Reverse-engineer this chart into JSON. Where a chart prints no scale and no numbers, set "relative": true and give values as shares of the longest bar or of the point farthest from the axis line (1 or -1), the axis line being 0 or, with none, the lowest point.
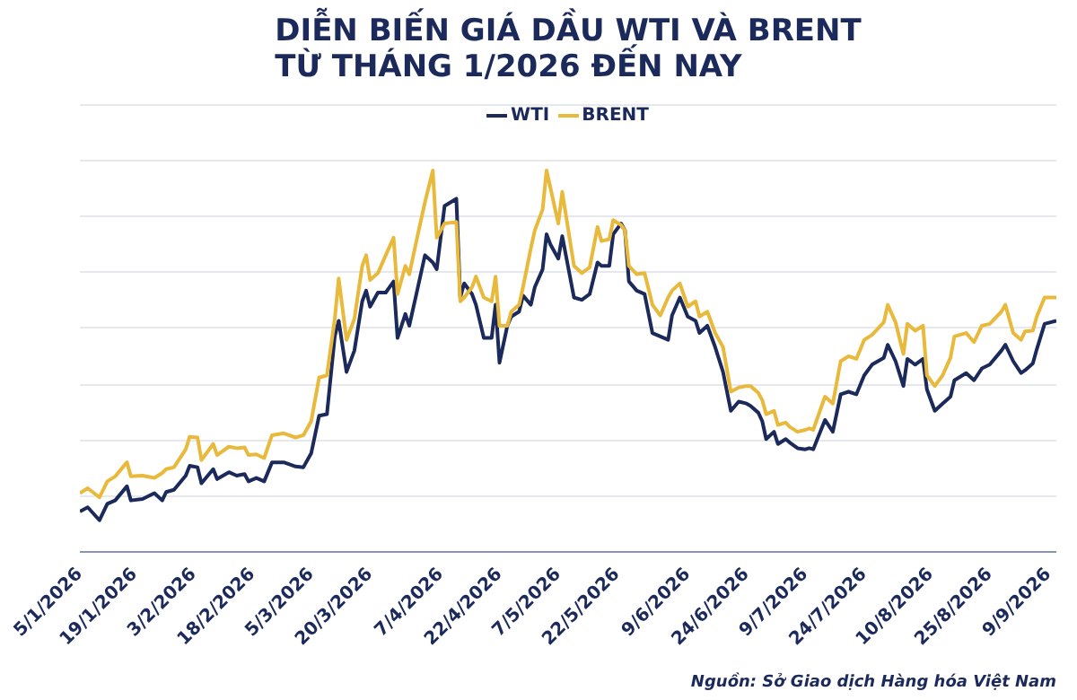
{
  "chart_data": {
    "type": "line",
    "title": "DIỄN BIẾN GIÁ DẦU WTI VÀ BRENT\nTỪ THÁNG 1/2026 ĐẾN NAY",
    "relative": true,
    "grid": "y",
    "legend": "top",
    "line_style": "solid",
    "annotations": [
      "Nguồn: Sở Giao dịch Hàng hóa Việt Nam"
    ],
    "xlim": [
      "2026-01-05",
      "2026-09-11"
    ],
    "xticks": [
      {
        "value": "2026-01-05",
        "label": "5/1/2026"
      },
      {
        "value": "2026-01-19",
        "label": "19/1/2026"
      },
      {
        "value": "2026-02-03",
        "label": "3/2/2026"
      },
      {
        "value": "2026-02-18",
        "label": "18/2/2026"
      },
      {
        "value": "2026-03-05",
        "label": "5/3/2026"
      },
      {
        "value": "2026-03-20",
        "label": "20/3/2026"
      },
      {
        "value": "2026-04-07",
        "label": "7/4/2026"
      },
      {
        "value": "2026-04-22",
        "label": "22/4/2026"
      },
      {
        "value": "2026-05-07",
        "label": "7/5/2026"
      },
      {
        "value": "2026-05-22",
        "label": "22/5/2026"
      },
      {
        "value": "2026-06-09",
        "label": "9/6/2026"
      },
      {
        "value": "2026-06-24",
        "label": "24/6/2026"
      },
      {
        "value": "2026-07-09",
        "label": "9/7/2026"
      },
      {
        "value": "2026-07-24",
        "label": "24/7/2026"
      },
      {
        "value": "2026-08-10",
        "label": "10/8/2026"
      },
      {
        "value": "2026-08-25",
        "label": "25/8/2026"
      },
      {
        "value": "2026-09-09",
        "label": "9/9/2026"
      }
    ],
    "x": [
      "2026-01-05",
      "2026-01-07",
      "2026-01-10",
      "2026-01-12",
      "2026-01-14",
      "2026-01-17",
      "2026-01-18",
      "2026-01-21",
      "2026-01-24",
      "2026-01-26",
      "2026-01-27",
      "2026-01-29",
      "2026-02-01",
      "2026-02-02",
      "2026-02-04",
      "2026-02-05",
      "2026-02-08",
      "2026-02-09",
      "2026-02-12",
      "2026-02-14",
      "2026-02-16",
      "2026-02-17",
      "2026-02-19",
      "2026-02-21",
      "2026-02-23",
      "2026-02-26",
      "2026-03-01",
      "2026-03-03",
      "2026-03-05",
      "2026-03-07",
      "2026-03-09",
      "2026-03-11",
      "2026-03-12",
      "2026-03-14",
      "2026-03-16",
      "2026-03-18",
      "2026-03-19",
      "2026-03-20",
      "2026-03-22",
      "2026-03-24",
      "2026-03-26",
      "2026-03-27",
      "2026-03-29",
      "2026-03-30",
      "2026-04-01",
      "2026-04-03",
      "2026-04-05",
      "2026-04-06",
      "2026-04-08",
      "2026-04-11",
      "2026-04-12",
      "2026-04-13",
      "2026-04-15",
      "2026-04-16",
      "2026-04-18",
      "2026-04-20",
      "2026-04-21",
      "2026-04-22",
      "2026-04-24",
      "2026-04-25",
      "2026-04-27",
      "2026-04-28",
      "2026-04-30",
      "2026-05-01",
      "2026-05-03",
      "2026-05-04",
      "2026-05-05",
      "2026-05-07",
      "2026-05-08",
      "2026-05-11",
      "2026-05-13",
      "2026-05-15",
      "2026-05-17",
      "2026-05-18",
      "2026-05-20",
      "2026-05-21",
      "2026-05-23",
      "2026-05-24",
      "2026-05-25",
      "2026-05-27",
      "2026-05-29",
      "2026-05-31",
      "2026-06-02",
      "2026-06-04",
      "2026-06-05",
      "2026-06-07",
      "2026-06-09",
      "2026-06-11",
      "2026-06-12",
      "2026-06-14",
      "2026-06-16",
      "2026-06-18",
      "2026-06-20",
      "2026-06-22",
      "2026-06-24",
      "2026-06-25",
      "2026-06-27",
      "2026-06-28",
      "2026-06-29",
      "2026-07-01",
      "2026-07-02",
      "2026-07-04",
      "2026-07-05",
      "2026-07-07",
      "2026-07-09",
      "2026-07-10",
      "2026-07-11",
      "2026-07-14",
      "2026-07-16",
      "2026-07-18",
      "2026-07-20",
      "2026-07-22",
      "2026-07-24",
      "2026-07-26",
      "2026-07-29",
      "2026-07-30",
      "2026-08-01",
      "2026-08-03",
      "2026-08-04",
      "2026-08-06",
      "2026-08-08",
      "2026-08-09",
      "2026-08-11",
      "2026-08-13",
      "2026-08-15",
      "2026-08-16",
      "2026-08-19",
      "2026-08-21",
      "2026-08-23",
      "2026-08-25",
      "2026-08-28",
      "2026-08-29",
      "2026-08-31",
      "2026-09-02",
      "2026-09-03",
      "2026-09-05",
      "2026-09-06",
      "2026-09-08",
      "2026-09-11"
    ],
    "series": [
      {
        "name": "WTI",
        "color": "#1b2a5a",
        "values": [
          0.106,
          0.117,
          0.083,
          0.126,
          0.135,
          0.172,
          0.135,
          0.139,
          0.154,
          0.135,
          0.157,
          0.163,
          0.2,
          0.226,
          0.222,
          0.18,
          0.217,
          0.191,
          0.209,
          0.2,
          0.204,
          0.185,
          0.194,
          0.185,
          0.235,
          0.235,
          0.224,
          0.222,
          0.259,
          0.357,
          0.361,
          0.565,
          0.606,
          0.472,
          0.528,
          0.657,
          0.685,
          0.643,
          0.68,
          0.68,
          0.709,
          0.561,
          0.624,
          0.593,
          0.685,
          0.778,
          0.759,
          0.741,
          0.907,
          0.926,
          0.667,
          0.704,
          0.676,
          0.648,
          0.561,
          0.561,
          0.648,
          0.496,
          0.593,
          0.617,
          0.63,
          0.672,
          0.648,
          0.694,
          0.741,
          0.833,
          0.806,
          0.769,
          0.828,
          0.667,
          0.661,
          0.676,
          0.759,
          0.75,
          0.75,
          0.833,
          0.861,
          0.843,
          0.709,
          0.685,
          0.676,
          0.574,
          0.565,
          0.556,
          0.62,
          0.667,
          0.617,
          0.606,
          0.574,
          0.593,
          0.537,
          0.472,
          0.37,
          0.394,
          0.389,
          0.383,
          0.365,
          0.343,
          0.296,
          0.315,
          0.283,
          0.296,
          0.287,
          0.272,
          0.269,
          0.272,
          0.269,
          0.346,
          0.315,
          0.413,
          0.42,
          0.413,
          0.463,
          0.491,
          0.509,
          0.543,
          0.5,
          0.435,
          0.506,
          0.491,
          0.506,
          0.426,
          0.37,
          0.389,
          0.407,
          0.45,
          0.469,
          0.45,
          0.481,
          0.491,
          0.528,
          0.543,
          0.5,
          0.469,
          0.476,
          0.494,
          0.531,
          0.598,
          0.606
        ]
      },
      {
        "name": "BRENT",
        "color": "#e9b93c",
        "values": [
          0.154,
          0.167,
          0.143,
          0.185,
          0.198,
          0.235,
          0.198,
          0.2,
          0.194,
          0.207,
          0.217,
          0.222,
          0.269,
          0.302,
          0.3,
          0.241,
          0.283,
          0.254,
          0.276,
          0.272,
          0.274,
          0.254,
          0.256,
          0.246,
          0.306,
          0.311,
          0.3,
          0.306,
          0.343,
          0.457,
          0.463,
          0.611,
          0.717,
          0.556,
          0.611,
          0.75,
          0.778,
          0.713,
          0.731,
          0.778,
          0.824,
          0.676,
          0.75,
          0.728,
          0.824,
          0.917,
          1,
          0.824,
          0.861,
          0.865,
          0.657,
          0.667,
          0.694,
          0.722,
          0.667,
          0.657,
          0.722,
          0.593,
          0.593,
          0.63,
          0.648,
          0.694,
          0.796,
          0.843,
          0.898,
          1,
          0.954,
          0.861,
          0.944,
          0.75,
          0.731,
          0.746,
          0.852,
          0.815,
          0.82,
          0.87,
          0.857,
          0.843,
          0.75,
          0.728,
          0.731,
          0.648,
          0.62,
          0.667,
          0.685,
          0.704,
          0.643,
          0.657,
          0.617,
          0.63,
          0.574,
          0.537,
          0.42,
          0.431,
          0.435,
          0.435,
          0.417,
          0.398,
          0.361,
          0.37,
          0.333,
          0.339,
          0.328,
          0.315,
          0.32,
          0.324,
          0.32,
          0.407,
          0.389,
          0.5,
          0.513,
          0.506,
          0.556,
          0.569,
          0.602,
          0.648,
          0.602,
          0.519,
          0.598,
          0.58,
          0.593,
          0.463,
          0.435,
          0.463,
          0.509,
          0.565,
          0.574,
          0.55,
          0.593,
          0.598,
          0.63,
          0.648,
          0.574,
          0.556,
          0.578,
          0.58,
          0.617,
          0.667,
          0.667
        ]
      }
    ]
  }
}
